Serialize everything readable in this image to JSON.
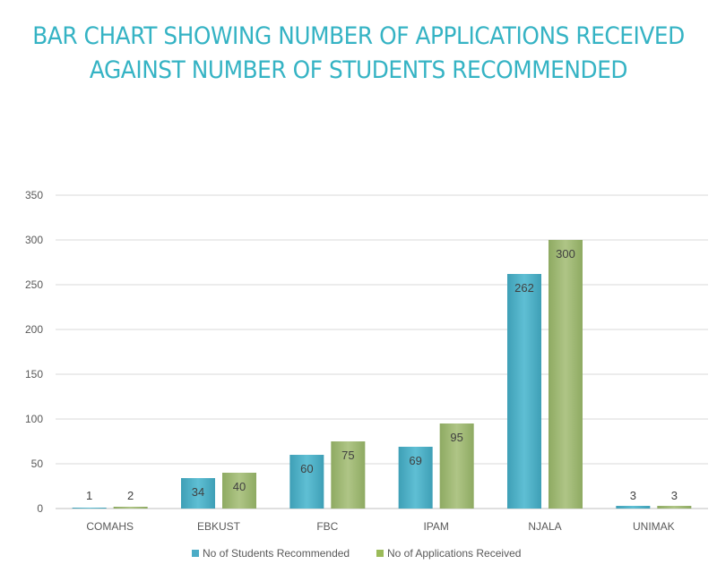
{
  "chart_data": {
    "type": "bar",
    "title": "BAR CHART SHOWING NUMBER OF APPLICATIONS RECEIVED AGAINST NUMBER OF STUDENTS RECOMMENDED",
    "title_lines": [
      "BAR CHART SHOWING NUMBER OF APPLICATIONS RECEIVED",
      "AGAINST NUMBER OF STUDENTS RECOMMENDED"
    ],
    "categories": [
      "COMAHS",
      "EBKUST",
      "FBC",
      "IPAM",
      "NJALA",
      "UNIMAK"
    ],
    "series": [
      {
        "name": "No of Students Recommended",
        "values": [
          1,
          34,
          60,
          69,
          262,
          3
        ],
        "color": "#4bacc6"
      },
      {
        "name": "No of Applications Received",
        "values": [
          2,
          40,
          75,
          95,
          300,
          3
        ],
        "color": "#9bbb59"
      }
    ],
    "xlabel": "",
    "ylabel": "",
    "ylim": [
      0,
      350
    ],
    "yticks": [
      0,
      50,
      100,
      150,
      200,
      250,
      300,
      350
    ],
    "grid": true,
    "legend": "bottom"
  }
}
